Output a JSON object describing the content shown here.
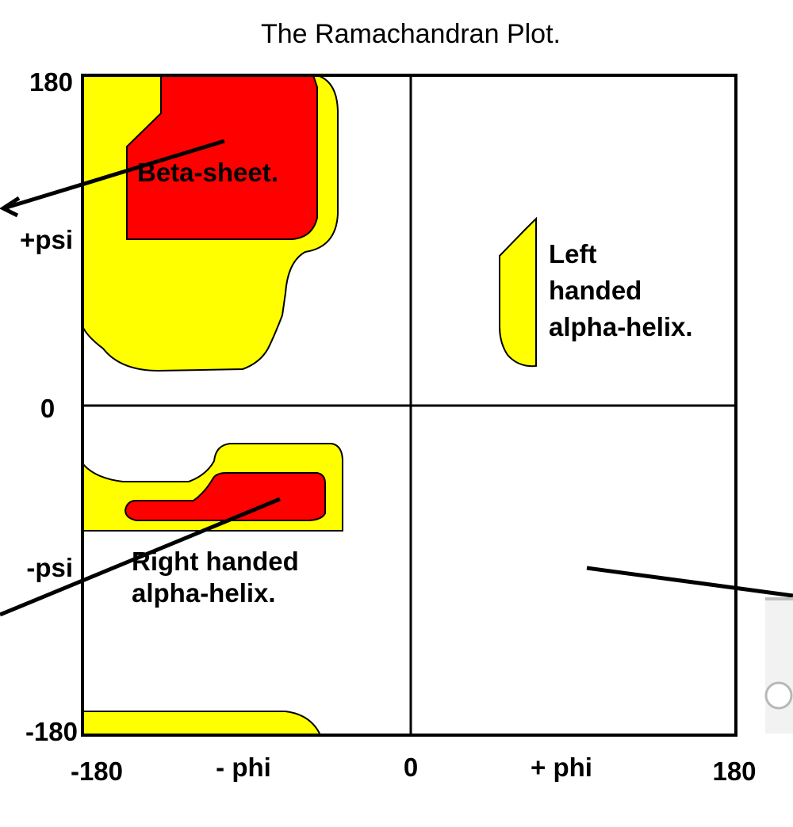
{
  "chart_data": {
    "type": "diagram",
    "title": "The Ramachandran Plot.",
    "x_ticks": [
      "-180",
      "- phi",
      "0",
      "+ phi",
      "180"
    ],
    "y_ticks": [
      "180",
      "+psi",
      "0",
      "-psi",
      "-180"
    ],
    "regions": [
      {
        "id": "beta-sheet",
        "label": "Beta-sheet.",
        "colors": [
          "#ffff00",
          "#ff0000"
        ]
      },
      {
        "id": "right-handed-alpha-helix",
        "label_lines": [
          "Right handed",
          "alpha-helix."
        ],
        "colors": [
          "#ffff00",
          "#ff0000"
        ]
      },
      {
        "id": "left-handed-alpha-helix",
        "label_lines": [
          "Left",
          "handed",
          "alpha-helix."
        ],
        "colors": [
          "#ffff00"
        ]
      }
    ],
    "colors": {
      "allowed": "#ffff00",
      "favored": "#ff0000",
      "lines": "#000000"
    }
  }
}
